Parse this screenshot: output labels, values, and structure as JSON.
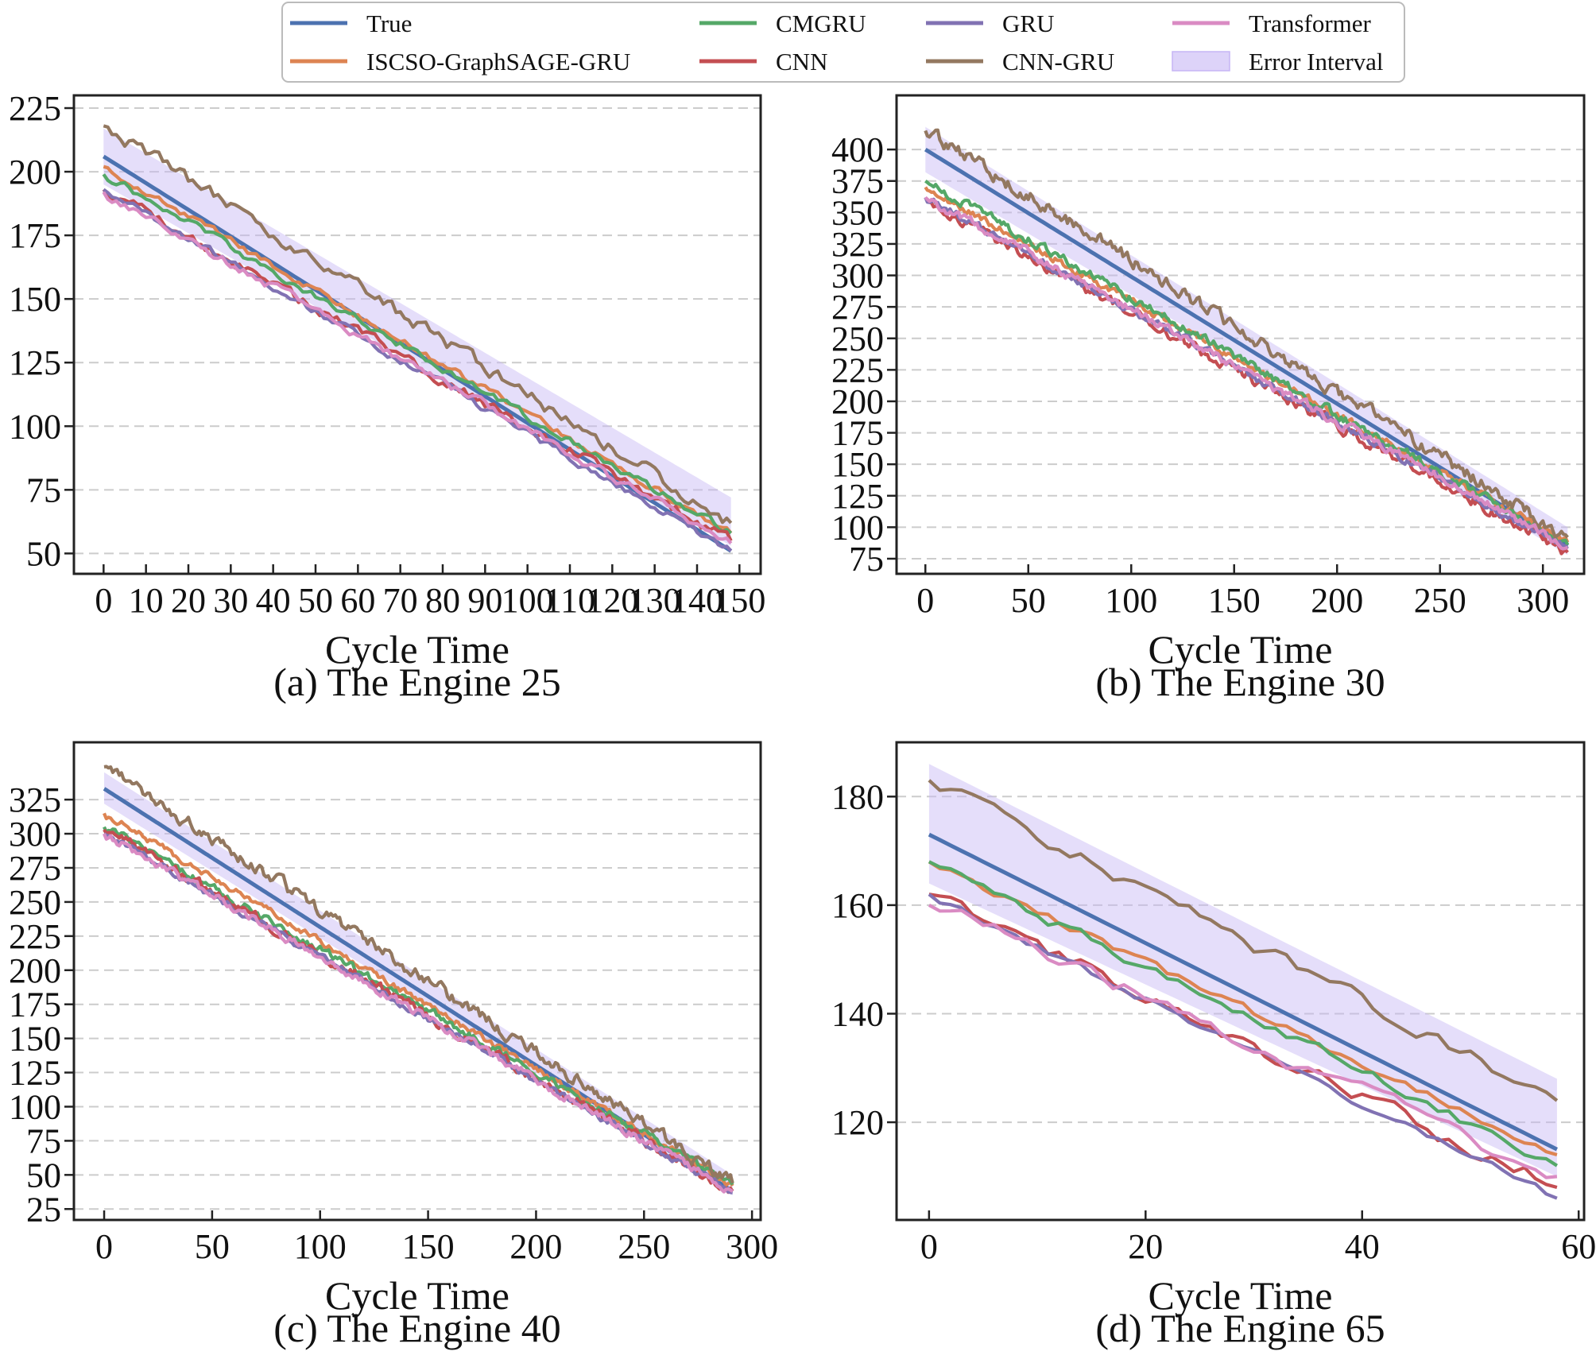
{
  "legend": {
    "entries": [
      {
        "label": "True",
        "color": "#4c72b0",
        "kind": "line"
      },
      {
        "label": "ISCSO-GraphSAGE-GRU",
        "color": "#dd8452",
        "kind": "line"
      },
      {
        "label": "CMGRU",
        "color": "#55a868",
        "kind": "line"
      },
      {
        "label": "CNN",
        "color": "#c44e52",
        "kind": "line"
      },
      {
        "label": "GRU",
        "color": "#8172b3",
        "kind": "line"
      },
      {
        "label": "CNN-GRU",
        "color": "#937860",
        "kind": "line"
      },
      {
        "label": "Transformer",
        "color": "#da8bc3",
        "kind": "line"
      },
      {
        "label": "Error Interval",
        "color": "#c6b5f5",
        "kind": "band"
      }
    ]
  },
  "chart_data": [
    {
      "type": "line",
      "caption": "(a) The Engine 25",
      "xlabel": "Cycle Time",
      "ylabel": "",
      "xlim": [
        -7,
        155
      ],
      "ylim": [
        42,
        230
      ],
      "xticks": [
        0,
        10,
        20,
        30,
        40,
        50,
        60,
        70,
        80,
        90,
        100,
        110,
        120,
        130,
        140,
        150
      ],
      "yticks": [
        50,
        75,
        100,
        125,
        150,
        175,
        200,
        225
      ],
      "x_max": 148,
      "grid": "y-dashed",
      "series": [
        {
          "name": "True",
          "start": 206,
          "end": 51,
          "noise": 0
        },
        {
          "name": "ISCSO-GraphSAGE-GRU",
          "start": 202,
          "end": 58,
          "noise": 1.2
        },
        {
          "name": "CMGRU",
          "start": 199,
          "end": 58,
          "noise": 1.3
        },
        {
          "name": "CNN",
          "start": 193,
          "end": 55,
          "noise": 1.8
        },
        {
          "name": "GRU",
          "start": 193,
          "end": 51,
          "noise": 1.3
        },
        {
          "name": "CNN-GRU",
          "start": 218,
          "end": 62,
          "noise": 2.2
        },
        {
          "name": "Transformer",
          "start": 192,
          "end": 54,
          "noise": 1.5
        }
      ],
      "error_interval": {
        "upper_start": 217,
        "upper_end": 72,
        "lower_start": 195,
        "lower_end": 53
      }
    },
    {
      "type": "line",
      "caption": "(b) The Engine 30",
      "xlabel": "Cycle Time",
      "ylabel": "",
      "xlim": [
        -14,
        320
      ],
      "ylim": [
        63,
        443
      ],
      "xticks": [
        0,
        50,
        100,
        150,
        200,
        250,
        300
      ],
      "yticks": [
        75,
        100,
        125,
        150,
        175,
        200,
        225,
        250,
        275,
        300,
        325,
        350,
        375,
        400
      ],
      "x_max": 312,
      "grid": "y-dashed",
      "series": [
        {
          "name": "True",
          "start": 400,
          "end": 85,
          "noise": 0
        },
        {
          "name": "ISCSO-GraphSAGE-GRU",
          "start": 370,
          "end": 88,
          "noise": 2.5
        },
        {
          "name": "CMGRU",
          "start": 375,
          "end": 86,
          "noise": 3
        },
        {
          "name": "CNN",
          "start": 360,
          "end": 80,
          "noise": 3.5
        },
        {
          "name": "GRU",
          "start": 362,
          "end": 83,
          "noise": 2.5
        },
        {
          "name": "CNN-GRU",
          "start": 415,
          "end": 92,
          "noise": 4.5
        },
        {
          "name": "Transformer",
          "start": 362,
          "end": 84,
          "noise": 3
        }
      ],
      "error_interval": {
        "upper_start": 418,
        "upper_end": 100,
        "lower_start": 382,
        "lower_end": 78
      }
    },
    {
      "type": "line",
      "caption": "(c) The Engine 40",
      "xlabel": "Cycle Time",
      "ylabel": "",
      "xlim": [
        -14,
        304
      ],
      "ylim": [
        17,
        367
      ],
      "xticks": [
        0,
        50,
        100,
        150,
        200,
        250,
        300
      ],
      "yticks": [
        25,
        50,
        75,
        100,
        125,
        150,
        175,
        200,
        225,
        250,
        275,
        300,
        325
      ],
      "x_max": 291,
      "grid": "y-dashed",
      "series": [
        {
          "name": "True",
          "start": 333,
          "end": 38,
          "noise": 0
        },
        {
          "name": "ISCSO-GraphSAGE-GRU",
          "start": 315,
          "end": 42,
          "noise": 2
        },
        {
          "name": "CMGRU",
          "start": 305,
          "end": 43,
          "noise": 2.5
        },
        {
          "name": "CNN",
          "start": 303,
          "end": 38,
          "noise": 3
        },
        {
          "name": "GRU",
          "start": 300,
          "end": 37,
          "noise": 2
        },
        {
          "name": "CNN-GRU",
          "start": 349,
          "end": 44,
          "noise": 3.8
        },
        {
          "name": "Transformer",
          "start": 300,
          "end": 38,
          "noise": 2.5
        }
      ],
      "error_interval": {
        "upper_start": 345,
        "upper_end": 50,
        "lower_start": 322,
        "lower_end": 35
      }
    },
    {
      "type": "line",
      "caption": "(d) The Engine 65",
      "xlabel": "Cycle Time",
      "ylabel": "",
      "xlim": [
        -3,
        60.5
      ],
      "ylim": [
        102,
        190
      ],
      "xticks": [
        0,
        20,
        40,
        60
      ],
      "yticks": [
        120,
        140,
        160,
        180
      ],
      "x_max": 58,
      "grid": "y-dashed",
      "series": [
        {
          "name": "True",
          "start": 173,
          "end": 115,
          "noise": 0
        },
        {
          "name": "ISCSO-GraphSAGE-GRU",
          "start": 168,
          "end": 114,
          "noise": 0.7
        },
        {
          "name": "CMGRU",
          "start": 168,
          "end": 112,
          "noise": 0.9
        },
        {
          "name": "CNN",
          "start": 162,
          "end": 108,
          "noise": 1.4
        },
        {
          "name": "GRU",
          "start": 162,
          "end": 106,
          "noise": 0.6
        },
        {
          "name": "CNN-GRU",
          "start": 183,
          "end": 124,
          "noise": 1.3
        },
        {
          "name": "Transformer",
          "start": 160,
          "end": 110,
          "noise": 1.3
        }
      ],
      "error_interval": {
        "upper_start": 186,
        "upper_end": 128,
        "lower_start": 164,
        "lower_end": 110
      }
    }
  ]
}
